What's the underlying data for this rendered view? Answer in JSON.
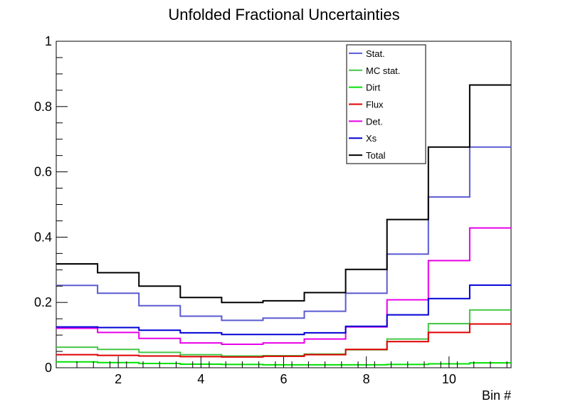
{
  "chart_data": {
    "type": "line",
    "title": "Unfolded Fractional Uncertainties",
    "xlabel": "Bin #",
    "ylabel": "",
    "xlim": [
      0.5,
      11.5
    ],
    "ylim": [
      0,
      1
    ],
    "x_ticks": [
      2,
      4,
      6,
      8,
      10
    ],
    "y_ticks": [
      0,
      0.2,
      0.4,
      0.6,
      0.8,
      1
    ],
    "y_tick_labels": [
      "0",
      "0.2",
      "0.4",
      "0.6",
      "0.8",
      "1"
    ],
    "x_tick_labels": [
      "2",
      "4",
      "6",
      "8",
      "10"
    ],
    "step": true,
    "legend_position": "top-right",
    "bins": [
      1,
      2,
      3,
      4,
      5,
      6,
      7,
      8,
      9,
      10,
      11
    ],
    "series": [
      {
        "name": "Stat.",
        "color": "#5a5ad2",
        "values": [
          0.252,
          0.228,
          0.19,
          0.158,
          0.145,
          0.152,
          0.173,
          0.228,
          0.348,
          0.523,
          0.676
        ]
      },
      {
        "name": "MC stat.",
        "color": "#45c645",
        "values": [
          0.063,
          0.056,
          0.047,
          0.04,
          0.036,
          0.037,
          0.042,
          0.055,
          0.088,
          0.135,
          0.177
        ]
      },
      {
        "name": "Dirt",
        "color": "#00e000",
        "values": [
          0.018,
          0.016,
          0.013,
          0.011,
          0.01,
          0.009,
          0.009,
          0.009,
          0.01,
          0.012,
          0.015
        ]
      },
      {
        "name": "Flux",
        "color": "#e00000",
        "values": [
          0.04,
          0.038,
          0.036,
          0.034,
          0.033,
          0.035,
          0.04,
          0.056,
          0.08,
          0.108,
          0.134
        ]
      },
      {
        "name": "Det.",
        "color": "#e800e8",
        "values": [
          0.121,
          0.108,
          0.09,
          0.076,
          0.072,
          0.076,
          0.088,
          0.125,
          0.208,
          0.328,
          0.428
        ]
      },
      {
        "name": "Xs",
        "color": "#0000d6",
        "values": [
          0.125,
          0.123,
          0.115,
          0.107,
          0.102,
          0.102,
          0.107,
          0.127,
          0.162,
          0.212,
          0.253
        ]
      },
      {
        "name": "Total",
        "color": "#000000",
        "values": [
          0.318,
          0.291,
          0.25,
          0.215,
          0.2,
          0.205,
          0.23,
          0.301,
          0.454,
          0.676,
          0.866
        ]
      }
    ]
  }
}
